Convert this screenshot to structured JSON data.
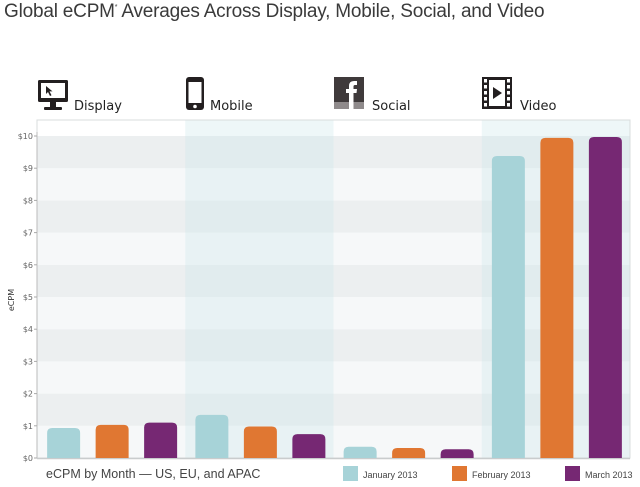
{
  "chart_data": {
    "type": "bar",
    "title": "Global eCPM Averages Across Display, Mobile, Social, and Video",
    "title_superscript": "*",
    "caption": "eCPM by Month — US, EU, and APAC",
    "xlabel": "",
    "ylabel": "eCPM",
    "ylim": [
      0,
      10
    ],
    "yticks": [
      "$0",
      "$1",
      "$2",
      "$3",
      "$4",
      "$5",
      "$6",
      "$7",
      "$8",
      "$9",
      "$10"
    ],
    "categories": [
      "Display",
      "Mobile",
      "Social",
      "Video"
    ],
    "category_icons": [
      "monitor-icon",
      "smartphone-icon",
      "facebook-icon",
      "film-icon"
    ],
    "series": [
      {
        "name": "January 2013",
        "color": "#a7d3d8",
        "values": [
          0.93,
          1.34,
          0.35,
          9.38
        ]
      },
      {
        "name": "February 2013",
        "color": "#e07732",
        "values": [
          1.03,
          0.98,
          0.31,
          9.94
        ]
      },
      {
        "name": "March 2013",
        "color": "#762873",
        "values": [
          1.1,
          0.74,
          0.27,
          9.97
        ]
      }
    ],
    "grid": true,
    "legend_position": "bottom-right"
  }
}
